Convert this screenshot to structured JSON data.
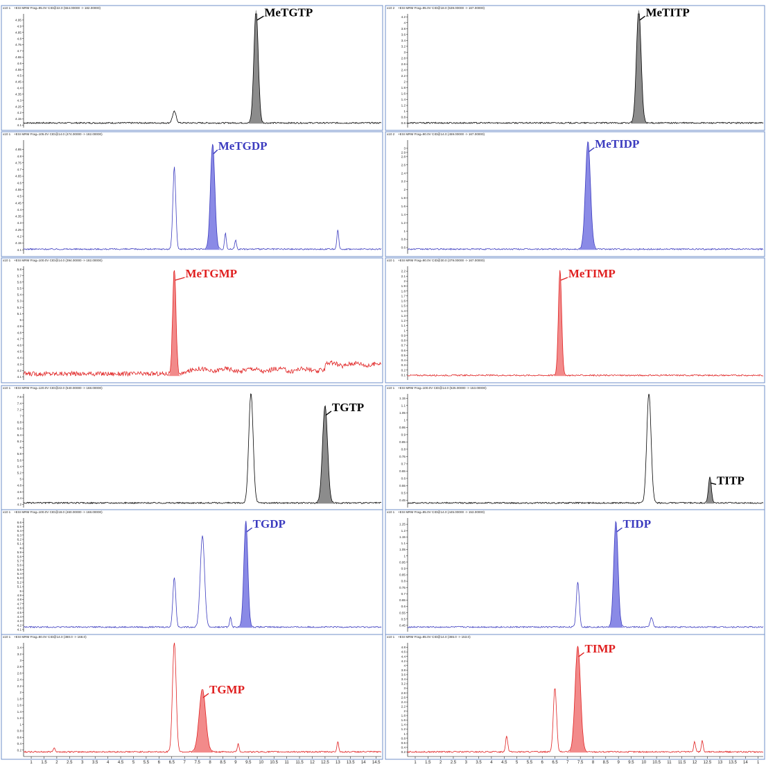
{
  "colors": {
    "black": "#000000",
    "blue": "#3b3bbf",
    "red": "#e02020",
    "gray_fill": "#8c8c8c",
    "blue_fill": "#8a8ae6",
    "red_fill": "#f28a8a",
    "frame": "#6f8fc9"
  },
  "x_axis": {
    "left_ticks": [
      "1",
      "1.5",
      "2",
      "2.5",
      "3",
      "3.5",
      "4",
      "4.5",
      "5",
      "5.5",
      "6",
      "6.5",
      "7",
      "7.5",
      "8",
      "8.5",
      "9",
      "9.5",
      "10",
      "10.5",
      "11",
      "11.5",
      "12",
      "12.5",
      "13",
      "13.5",
      "14",
      "14.5"
    ],
    "right_ticks": [
      "1",
      "1.5",
      "2",
      "2.5",
      "3",
      "3.5",
      "4",
      "4.5",
      "5",
      "5.5",
      "6",
      "6.5",
      "7",
      "7.5",
      "8",
      "8.5",
      "9",
      "9.5",
      "10",
      "10.5",
      "11",
      "11.5",
      "12",
      "12.5",
      "13",
      "13.5",
      "14",
      "1"
    ]
  },
  "chart_data": [
    {
      "type": "line",
      "title": "MeTGTP",
      "header": "+ESI MRM Frag=95.0V CID@22.0 (554.00000 -> 182.00000)",
      "scale_label": "x10 1",
      "y_ticks": [
        "4.95",
        "4.9",
        "4.85",
        "4.8",
        "4.75",
        "4.7",
        "4.65",
        "4.6",
        "4.55",
        "4.5",
        "4.45",
        "4.4",
        "4.35",
        "4.3",
        "4.25",
        "4.2",
        "4.15",
        "4.1"
      ],
      "ylim": [
        4.08,
        5.0
      ],
      "xlim": [
        0.7,
        14.7
      ],
      "color": "black",
      "filled": {
        "x": 9.8,
        "height": 1.0,
        "width": 0.12
      },
      "peaks": [
        {
          "x": 6.6,
          "h": 0.1,
          "w": 0.1
        },
        {
          "x": 9.8,
          "h": 1.0,
          "w": 0.12
        }
      ]
    },
    {
      "type": "line",
      "title": "MeTITP",
      "header": "+ESI MRM Frag=95.0V CID@18.0 (539.00000 -> 167.00000)",
      "scale_label": "x10 2",
      "y_ticks": [
        "4.2",
        "4",
        "3.8",
        "3.6",
        "3.4",
        "3.2",
        "3",
        "2.8",
        "2.6",
        "2.4",
        "2.2",
        "2",
        "1.8",
        "1.6",
        "1.4",
        "1.2",
        "1",
        "0.8",
        "0.6"
      ],
      "ylim": [
        0.45,
        4.3
      ],
      "xlim": [
        0.7,
        14.7
      ],
      "color": "black",
      "filled": {
        "x": 9.8,
        "height": 1.0,
        "width": 0.13
      },
      "peaks": [
        {
          "x": 9.8,
          "h": 1.0,
          "w": 0.13
        }
      ]
    },
    {
      "type": "line",
      "title": "MeTGDP",
      "header": "+ESI MRM Frag=105.0V CID@14.0 (474.00000 -> 182.00000)",
      "scale_label": "x10 1",
      "y_ticks": [
        "4.85",
        "4.8",
        "4.75",
        "4.7",
        "4.65",
        "4.6",
        "4.55",
        "4.5",
        "4.45",
        "4.4",
        "4.35",
        "4.3",
        "4.25",
        "4.2",
        "4.15",
        "4.1"
      ],
      "ylim": [
        4.07,
        4.92
      ],
      "xlim": [
        0.7,
        14.7
      ],
      "color": "blue",
      "filled": {
        "x": 8.1,
        "height": 0.93,
        "width": 0.12
      },
      "peaks": [
        {
          "x": 6.6,
          "h": 0.72,
          "w": 0.08
        },
        {
          "x": 8.1,
          "h": 0.93,
          "w": 0.12
        },
        {
          "x": 8.6,
          "h": 0.14,
          "w": 0.05
        },
        {
          "x": 9.0,
          "h": 0.08,
          "w": 0.05
        },
        {
          "x": 13.0,
          "h": 0.17,
          "w": 0.05
        }
      ]
    },
    {
      "type": "line",
      "title": "MeTIDP",
      "header": "+ESI MRM Frag=90.0V CID@14.0 (459.00000 -> 167.00000)",
      "scale_label": "x10 2",
      "y_ticks": [
        "3",
        "2.9",
        "2.8",
        "2.6",
        "2.4",
        "2.2",
        "2",
        "1.8",
        "1.6",
        "1.4",
        "1.2",
        "1",
        "0.8",
        "0.6"
      ],
      "ylim": [
        0.45,
        3.2
      ],
      "xlim": [
        0.7,
        14.7
      ],
      "color": "blue",
      "filled": {
        "x": 7.8,
        "height": 0.95,
        "width": 0.14
      },
      "peaks": [
        {
          "x": 7.8,
          "h": 0.95,
          "w": 0.14
        }
      ]
    },
    {
      "type": "line",
      "title": "MeTGMP",
      "header": "+ESI MRM Frag=100.0V CID@14.0 (394.00000 -> 182.00000)",
      "scale_label": "x10 1",
      "y_ticks": [
        "5.8",
        "5.7",
        "5.6",
        "5.5",
        "5.4",
        "5.3",
        "5.2",
        "5.1",
        "5",
        "4.9",
        "4.8",
        "4.7",
        "4.6",
        "4.5",
        "4.4",
        "4.3",
        "4.2",
        "4.1"
      ],
      "ylim": [
        4.05,
        5.85
      ],
      "xlim": [
        0.7,
        14.7
      ],
      "color": "red",
      "filled": {
        "x": 6.6,
        "height": 0.93,
        "width": 0.09
      },
      "peaks": [
        {
          "x": 6.6,
          "h": 0.93,
          "w": 0.09
        }
      ]
    },
    {
      "type": "line",
      "title": "MeTIMP",
      "header": "+ESI MRM Frag=90.0V CID@30.0 (379.00000 -> 167.00000)",
      "scale_label": "x10 1",
      "y_ticks": [
        "2.2",
        "2.1",
        "2",
        "1.9",
        "1.8",
        "1.7",
        "1.6",
        "1.5",
        "1.4",
        "1.3",
        "1.2",
        "1.1",
        "1",
        "0.9",
        "0.8",
        "0.7",
        "0.6",
        "0.5",
        "0.4",
        "0.3",
        "0.2",
        "0.1"
      ],
      "ylim": [
        0.0,
        2.3
      ],
      "xlim": [
        0.7,
        14.7
      ],
      "color": "red",
      "filled": {
        "x": 6.7,
        "height": 0.93,
        "width": 0.09
      },
      "peaks": [
        {
          "x": 6.7,
          "h": 0.93,
          "w": 0.09
        }
      ]
    },
    {
      "type": "line",
      "title": "TGTP",
      "header": "+ESI MRM Frag=120.0V CID@22.0 (540.00000 -> 168.00000)",
      "scale_label": "x10 1",
      "y_ticks": [
        "7.6",
        "7.4",
        "7.2",
        "7",
        "6.8",
        "6.6",
        "6.4",
        "6.2",
        "6",
        "5.8",
        "5.6",
        "5.4",
        "5.2",
        "5",
        "4.8",
        "4.6",
        "4.4",
        "4.2"
      ],
      "ylim": [
        4.1,
        7.7
      ],
      "xlim": [
        0.7,
        14.7
      ],
      "color": "black",
      "filled": {
        "x": 12.5,
        "height": 0.86,
        "width": 0.14
      },
      "peaks": [
        {
          "x": 9.6,
          "h": 0.97,
          "w": 0.12
        },
        {
          "x": 12.5,
          "h": 0.86,
          "w": 0.14
        }
      ]
    },
    {
      "type": "line",
      "title": "TITP",
      "header": "+ESI MRM Frag=100.0V CID@14.0 (525.00000 -> 153.00000)",
      "scale_label": "x10 1",
      "y_ticks": [
        "1.15",
        "1.1",
        "1.05",
        "1",
        "0.95",
        "0.9",
        "0.85",
        "0.8",
        "0.75",
        "0.7",
        "0.65",
        "0.6",
        "0.55",
        "0.5",
        "0.45"
      ],
      "ylim": [
        0.4,
        1.18
      ],
      "xlim": [
        0.7,
        14.7
      ],
      "color": "black",
      "filled": {
        "x": 12.6,
        "height": 0.23,
        "width": 0.08
      },
      "peaks": [
        {
          "x": 10.2,
          "h": 0.97,
          "w": 0.12
        },
        {
          "x": 12.6,
          "h": 0.23,
          "w": 0.08
        }
      ]
    },
    {
      "type": "line",
      "title": "TGDP",
      "header": "+ESI MRM Frag=100.0V CID@18.0 (460.00000 -> 168.00000)",
      "scale_label": "x10 1",
      "y_ticks": [
        "6.6",
        "6.5",
        "6.4",
        "6.3",
        "6.2",
        "6.1",
        "6",
        "5.9",
        "5.8",
        "5.7",
        "5.6",
        "5.5",
        "5.4",
        "5.3",
        "5.2",
        "5.1",
        "5",
        "4.9",
        "4.8",
        "4.7",
        "4.6",
        "4.5",
        "4.4",
        "4.3",
        "4.2",
        "4.1"
      ],
      "ylim": [
        4.05,
        6.7
      ],
      "xlim": [
        0.7,
        14.7
      ],
      "color": "blue",
      "filled": {
        "x": 9.4,
        "height": 0.93,
        "width": 0.11
      },
      "peaks": [
        {
          "x": 6.6,
          "h": 0.44,
          "w": 0.08
        },
        {
          "x": 7.7,
          "h": 0.8,
          "w": 0.12
        },
        {
          "x": 8.8,
          "h": 0.09,
          "w": 0.05
        },
        {
          "x": 9.4,
          "h": 0.93,
          "w": 0.11
        }
      ]
    },
    {
      "type": "line",
      "title": "TIDP",
      "header": "+ESI MRM Frag=85.0V CID@14.0 (445.00000 -> 153.00000)",
      "scale_label": "x10 1",
      "y_ticks": [
        "1.25",
        "1.2",
        "1.15",
        "1.1",
        "1.05",
        "1",
        "0.95",
        "0.9",
        "0.85",
        "0.8",
        "0.75",
        "0.7",
        "0.65",
        "0.6",
        "0.55",
        "0.5",
        "0.45"
      ],
      "ylim": [
        0.4,
        1.3
      ],
      "xlim": [
        0.7,
        14.7
      ],
      "color": "blue",
      "filled": {
        "x": 8.9,
        "height": 0.93,
        "width": 0.12
      },
      "peaks": [
        {
          "x": 7.4,
          "h": 0.4,
          "w": 0.08
        },
        {
          "x": 8.9,
          "h": 0.93,
          "w": 0.12
        },
        {
          "x": 10.3,
          "h": 0.08,
          "w": 0.08
        }
      ]
    },
    {
      "type": "line",
      "title": "TGMP",
      "header": "+ESI MRM Frag=80.0V CID@14.0 (380.0 -> 168.0)",
      "scale_label": "x10 1",
      "y_ticks": [
        "3.4",
        "3.2",
        "3",
        "2.8",
        "2.6",
        "2.4",
        "2.2",
        "2",
        "1.8",
        "1.6",
        "1.4",
        "1.2",
        "1",
        "0.8",
        "0.6",
        "0.4",
        "0.2"
      ],
      "ylim": [
        0.0,
        3.55
      ],
      "xlim": [
        0.7,
        14.7
      ],
      "color": "red",
      "filled": {
        "x": 7.7,
        "height": 0.55,
        "width": 0.18
      },
      "peaks": [
        {
          "x": 1.9,
          "h": 0.04,
          "w": 0.05
        },
        {
          "x": 6.6,
          "h": 0.97,
          "w": 0.1
        },
        {
          "x": 7.7,
          "h": 0.55,
          "w": 0.18
        },
        {
          "x": 9.1,
          "h": 0.07,
          "w": 0.05
        },
        {
          "x": 13.0,
          "h": 0.09,
          "w": 0.05
        }
      ]
    },
    {
      "type": "line",
      "title": "TIMP",
      "header": "+ESI MRM Frag=85.0V CID@14.0 (365.0 -> 153.0)",
      "scale_label": "x10 1",
      "y_ticks": [
        "4.8",
        "4.6",
        "4.4",
        "4.2",
        "4",
        "3.8",
        "3.6",
        "3.4",
        "3.2",
        "3",
        "2.8",
        "2.6",
        "2.4",
        "2.2",
        "2",
        "1.8",
        "1.6",
        "1.4",
        "1.2",
        "1",
        "0.8",
        "0.6",
        "0.4",
        "0.2"
      ],
      "ylim": [
        0.0,
        5.0
      ],
      "xlim": [
        0.7,
        14.7
      ],
      "color": "red",
      "filled": {
        "x": 7.4,
        "height": 0.93,
        "width": 0.15
      },
      "peaks": [
        {
          "x": 4.6,
          "h": 0.14,
          "w": 0.06
        },
        {
          "x": 6.5,
          "h": 0.56,
          "w": 0.09
        },
        {
          "x": 7.4,
          "h": 0.93,
          "w": 0.15
        },
        {
          "x": 12.0,
          "h": 0.09,
          "w": 0.05
        },
        {
          "x": 12.3,
          "h": 0.1,
          "w": 0.05
        }
      ]
    }
  ]
}
